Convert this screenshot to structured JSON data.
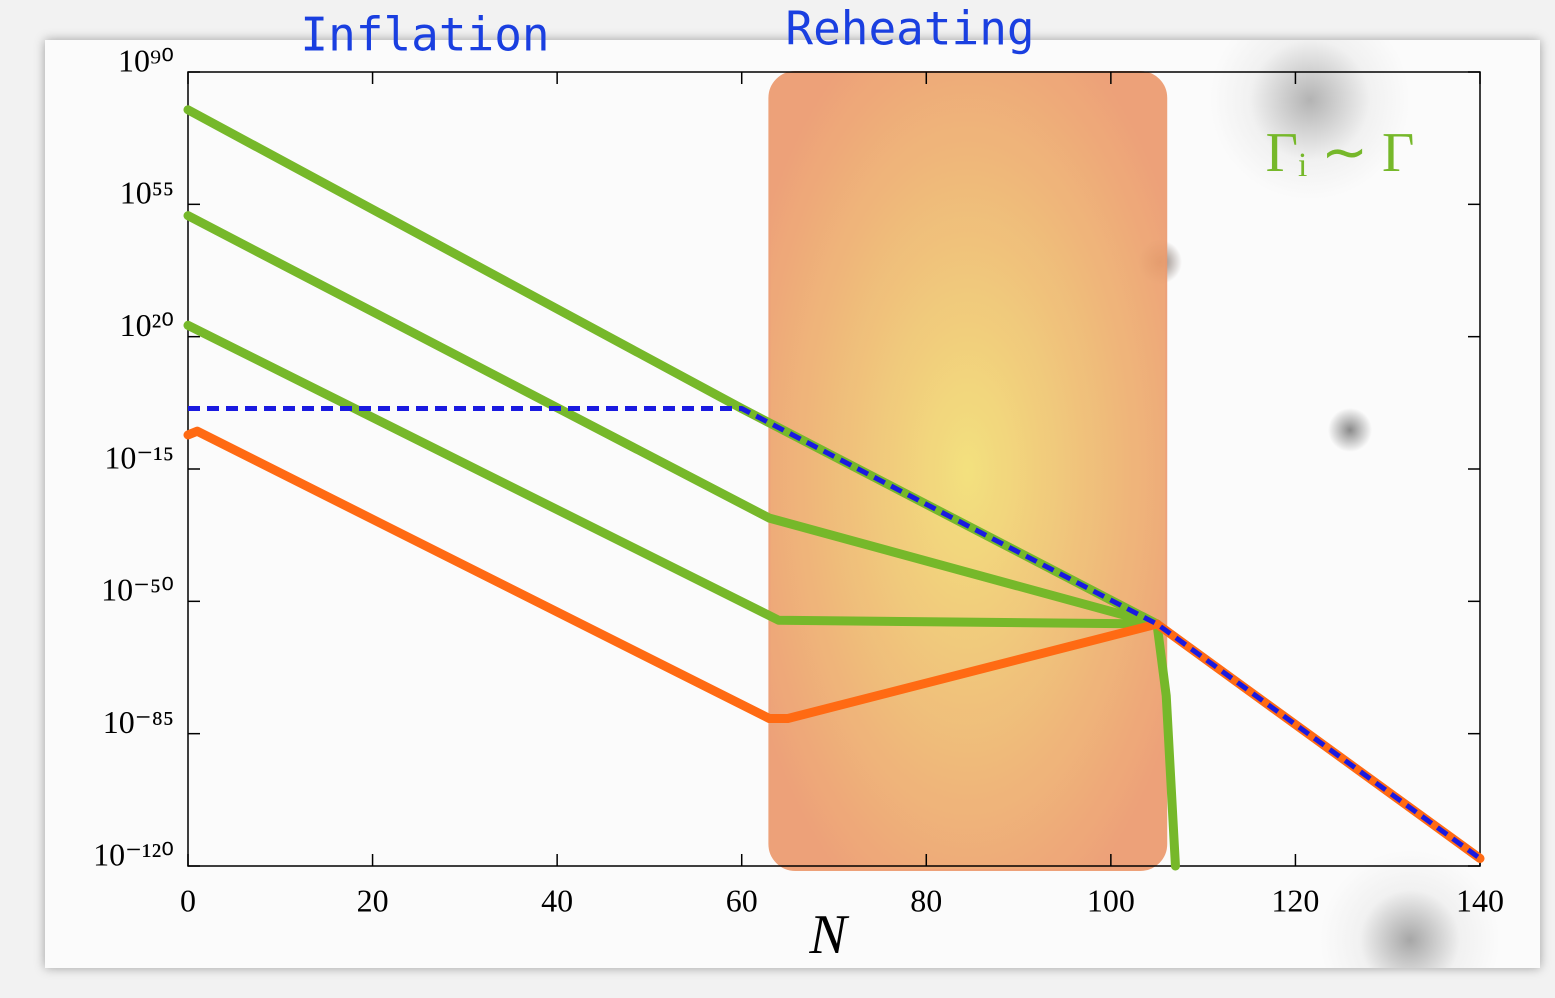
{
  "chart_data": {
    "type": "line",
    "annotations": [
      "Inflation",
      "Reheating",
      "Γᵢ ∼ Γ"
    ],
    "xlabel": "N",
    "log_y": true,
    "xlim": [
      0,
      140
    ],
    "xticks": [
      0,
      20,
      40,
      60,
      80,
      100,
      120,
      140
    ],
    "ylim": [
      1e-120,
      1e+90
    ],
    "yticks": [
      {
        "value": 1e+90,
        "label": "10⁹⁰"
      },
      {
        "value": 1e+55,
        "label": "10⁵⁵"
      },
      {
        "value": 1e+20,
        "label": "10²⁰"
      },
      {
        "value": 1e-15,
        "label": "10⁻¹⁵"
      },
      {
        "value": 1e-50,
        "label": "10⁻⁵⁰"
      },
      {
        "value": 1e-85,
        "label": "10⁻⁸⁵"
      },
      {
        "value": 1e-120,
        "label": "10⁻¹²⁰"
      }
    ],
    "highlight": {
      "x": [
        63,
        106
      ],
      "color": "#ec9a6e"
    },
    "series": [
      {
        "color": "#76b82a",
        "x": [
          0,
          60,
          105,
          106,
          107
        ],
        "values": [
          1e+80,
          10.0,
          1e-56,
          1e-75,
          1e-120
        ]
      },
      {
        "color": "#76b82a",
        "x": [
          0,
          63,
          105
        ],
        "values": [
          1e+52,
          1e-28,
          1e-56
        ]
      },
      {
        "color": "#76b82a",
        "x": [
          0,
          64,
          105
        ],
        "values": [
          1e+23,
          1e-55,
          1e-56
        ]
      },
      {
        "color": "#ff6a13",
        "x": [
          0,
          1,
          63,
          65,
          105,
          140
        ],
        "values": [
          1e-06,
          1e-05,
          1e-81,
          1e-81,
          1e-56,
          1e-118
        ]
      },
      {
        "color": "#1a1ae0",
        "dashed": true,
        "x": [
          0,
          60,
          105,
          140
        ],
        "values": [
          10.0,
          10.0,
          1e-56,
          1e-118
        ]
      }
    ]
  }
}
